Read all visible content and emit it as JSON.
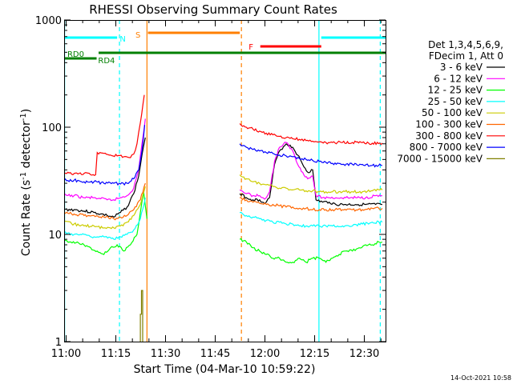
{
  "chart_data": {
    "type": "line",
    "title": "RHESSI Observing Summary Count Rates",
    "xlabel": "Start Time (04-Mar-10 10:59:22)",
    "ylabel": "Count Rate (s",
    "ylabel_sup": "-1",
    "ylabel_tail": " detector",
    "ylabel_close": ")",
    "yscale": "log",
    "xlim_minutes": [
      0,
      97
    ],
    "ylim": [
      1,
      1000
    ],
    "x_ticks": [
      {
        "m": 0.6,
        "label": "11:00"
      },
      {
        "m": 15.6,
        "label": "11:15"
      },
      {
        "m": 30.6,
        "label": "11:30"
      },
      {
        "m": 45.6,
        "label": "11:45"
      },
      {
        "m": 60.6,
        "label": "12:00"
      },
      {
        "m": 75.6,
        "label": "12:15"
      },
      {
        "m": 90.6,
        "label": "12:30"
      }
    ],
    "y_ticks": [
      {
        "v": 1,
        "label": "1"
      },
      {
        "v": 10,
        "label": "10"
      },
      {
        "v": 100,
        "label": "100"
      },
      {
        "v": 1000,
        "label": "1000"
      }
    ],
    "legend": {
      "header": [
        "Det 1,3,4,5,6,9,",
        "FDecim 1, Att 0"
      ],
      "placement": "right"
    },
    "series": [
      {
        "name": "3 - 6 keV",
        "color": "#000000",
        "x": [
          0,
          3,
          6,
          9,
          11,
          13,
          15,
          17,
          19,
          21,
          22.5,
          23.5,
          24.5,
          53,
          55,
          57,
          59,
          60,
          61,
          62,
          63.5,
          65,
          67,
          69,
          70.5,
          72,
          73.5,
          75,
          76,
          78,
          80,
          82,
          85,
          88,
          91,
          94,
          96
        ],
        "y": [
          17,
          17,
          16.5,
          16,
          15.5,
          15,
          14.5,
          16,
          18,
          24,
          35,
          55,
          80,
          24,
          22,
          21,
          21,
          20,
          20,
          22,
          45,
          60,
          70,
          65,
          55,
          45,
          38,
          40,
          21,
          20,
          20,
          19,
          19,
          19,
          19,
          19,
          19
        ]
      },
      {
        "name": "6 - 12 keV",
        "color": "#ff00ff",
        "x": [
          0,
          3,
          6,
          9,
          11,
          13,
          15,
          17,
          19,
          21,
          22.5,
          23.5,
          24.5,
          53,
          55,
          57,
          59,
          60,
          61,
          62,
          63.5,
          65,
          67,
          69,
          70.5,
          72,
          73.5,
          75,
          76,
          78,
          80,
          82,
          85,
          88,
          91,
          94,
          96
        ],
        "y": [
          23,
          23,
          22,
          22,
          21.5,
          21,
          21,
          22,
          23,
          27,
          40,
          70,
          120,
          26,
          24,
          23,
          23,
          22,
          22,
          25,
          48,
          65,
          72,
          60,
          45,
          38,
          33,
          35,
          23,
          22,
          22,
          22,
          22,
          22,
          22,
          23,
          23
        ]
      },
      {
        "name": "12 - 25 keV",
        "color": "#00ff00",
        "x": [
          0,
          2,
          4,
          6,
          8,
          10,
          12,
          14,
          16,
          18,
          20,
          22,
          23,
          24,
          25,
          53,
          55,
          57,
          59,
          61,
          63,
          65,
          67,
          69,
          71,
          73,
          75,
          77,
          79,
          81,
          83,
          85,
          87,
          89,
          91,
          93,
          95,
          96
        ],
        "y": [
          9,
          8.5,
          8.5,
          8,
          7.5,
          7,
          6.5,
          7.5,
          8,
          7,
          8,
          10,
          16,
          25,
          14,
          9,
          8.5,
          7.5,
          7,
          6.5,
          6,
          6,
          5.5,
          5.5,
          6,
          5.5,
          6,
          6,
          5.5,
          6,
          6.5,
          7,
          7,
          7.5,
          8,
          8,
          8.5,
          8.5
        ]
      },
      {
        "name": "25 - 50 keV",
        "color": "#00ffff",
        "x": [
          0,
          3,
          6,
          9,
          12,
          15,
          17,
          19,
          21,
          23,
          24.5,
          53,
          55,
          57,
          59,
          61,
          63,
          65,
          67,
          69,
          71,
          73,
          75,
          77,
          79,
          81,
          84,
          87,
          90,
          93,
          96
        ],
        "y": [
          10.5,
          10,
          10,
          9.5,
          9.5,
          9,
          9.5,
          10,
          11,
          14,
          22,
          16,
          15,
          14.5,
          14,
          13.5,
          13,
          13,
          12.5,
          12.5,
          12,
          12,
          12,
          12,
          12,
          12,
          12,
          12,
          12.5,
          13,
          13
        ]
      },
      {
        "name": "50 - 100 keV",
        "color": "#cccc00",
        "x": [
          0,
          3,
          6,
          9,
          12,
          15,
          17,
          19,
          21,
          23,
          24.5,
          53,
          55,
          57,
          59,
          61,
          63,
          65,
          67,
          69,
          71,
          73,
          75,
          77,
          79,
          81,
          84,
          87,
          90,
          93,
          96
        ],
        "y": [
          13,
          12.5,
          12,
          12,
          11.5,
          11.5,
          12,
          13,
          15,
          19,
          28,
          36,
          33,
          31,
          30,
          29,
          28,
          27,
          27,
          26,
          26,
          25.5,
          25.5,
          25,
          25,
          25,
          25,
          25,
          25,
          25.5,
          26
        ]
      },
      {
        "name": "100 - 300 keV",
        "color": "#ff6600",
        "x": [
          0,
          3,
          6,
          9,
          12,
          15,
          17,
          19,
          21,
          23,
          24.5,
          53,
          55,
          57,
          59,
          61,
          63,
          65,
          67,
          69,
          71,
          73,
          75,
          77,
          79,
          81,
          84,
          87,
          90,
          93,
          96
        ],
        "y": [
          16,
          15.5,
          15,
          15,
          14.5,
          14,
          14.5,
          15,
          17,
          21,
          30,
          22,
          21,
          20,
          19.5,
          19,
          19,
          18.5,
          18,
          18,
          17.5,
          17.5,
          17,
          17,
          17,
          17,
          17,
          17,
          17,
          17.5,
          17.5
        ]
      },
      {
        "name": "300 - 800 keV",
        "color": "#ff0000",
        "x": [
          0,
          3,
          6,
          8,
          9.5,
          10,
          12,
          14,
          16,
          18,
          20,
          21,
          22,
          23,
          24.2,
          53,
          55,
          57,
          59,
          61,
          63,
          65,
          67,
          69,
          71,
          73,
          75,
          77,
          79,
          81,
          84,
          87,
          90,
          93,
          96
        ],
        "y": [
          37,
          37,
          37,
          36,
          36,
          58,
          57,
          55,
          54,
          53,
          52,
          56,
          70,
          110,
          200,
          108,
          100,
          96,
          92,
          88,
          85,
          82,
          80,
          78,
          77,
          75,
          74,
          73,
          72,
          72,
          72,
          72,
          72,
          71,
          71
        ]
      },
      {
        "name": "800 - 7000 keV",
        "color": "#0000ff",
        "x": [
          0,
          3,
          6,
          9,
          12,
          15,
          17,
          19,
          21,
          22.5,
          23.5,
          24.3,
          53,
          55,
          57,
          59,
          61,
          63,
          65,
          67,
          69,
          71,
          73,
          75,
          77,
          79,
          81,
          84,
          87,
          90,
          93,
          96
        ],
        "y": [
          32,
          32,
          31,
          31,
          30,
          30,
          29.5,
          30,
          33,
          40,
          60,
          105,
          70,
          65,
          62,
          60,
          58,
          57,
          55,
          54,
          53,
          51,
          50,
          49,
          48,
          47,
          46,
          45,
          45,
          45,
          44,
          44
        ]
      },
      {
        "name": "7000 - 15000 keV",
        "color": "#808000",
        "x": [
          23.0,
          23.0,
          23.35,
          23.35,
          23.7,
          23.7
        ],
        "y": [
          1.0,
          1.8,
          1.8,
          3.0,
          3.0,
          1.0
        ]
      }
    ],
    "vlines": [
      {
        "m": 0.15,
        "color": "#00ffff",
        "dash": false
      },
      {
        "m": 16.7,
        "color": "#00ffff",
        "dash": true
      },
      {
        "m": 25.0,
        "color": "#ff7f00",
        "dash": false
      },
      {
        "m": 53.5,
        "color": "#ff7f00",
        "dash": true
      },
      {
        "m": 76.9,
        "color": "#00ffff",
        "dash": false
      },
      {
        "m": 95.4,
        "color": "#00ffff",
        "dash": true
      }
    ],
    "flag_bars": [
      {
        "label": "N",
        "color": "#00ffff",
        "x0": -3,
        "x1": 16.0,
        "y": 47,
        "label_m": 17.7,
        "label_y": 48
      },
      {
        "label": "S",
        "color": "#ff7f00",
        "x0": 25.3,
        "x1": 53.0,
        "y": 41,
        "label_m": 22.3,
        "label_y": 43
      },
      {
        "label": "F",
        "color": "#ff0000",
        "x0": 59.2,
        "x1": 77.6,
        "y": 58,
        "label_m": 56.4,
        "label_y": 58
      },
      {
        "label": "",
        "color": "#00ffff",
        "x0": 77.6,
        "x1": 102,
        "y": 47
      },
      {
        "label": "RD0",
        "color": "#008000",
        "x0": 10.4,
        "x1": 102,
        "y": 66,
        "label_m": 3.5,
        "label_y": 67
      },
      {
        "label": "RD4",
        "color": "#008000",
        "x0": -3,
        "x1": 9.8,
        "y": 73,
        "label_m": 12.8,
        "label_y": 75
      }
    ]
  },
  "footer_date": "14-Oct-2021 10:58"
}
